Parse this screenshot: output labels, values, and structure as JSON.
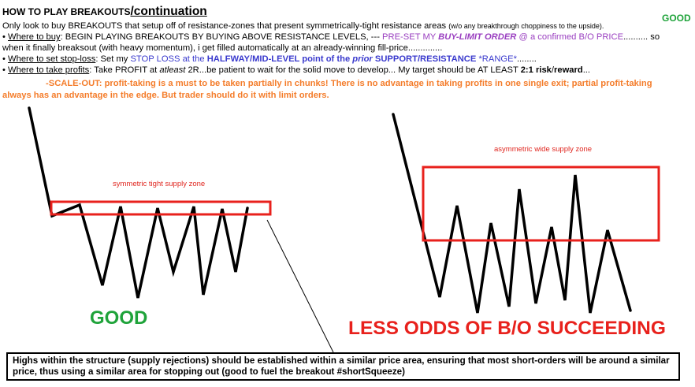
{
  "header": {
    "title_main": "HOW TO PLAY BREAKOUTS",
    "title_cont": "/continuation",
    "good_label": "GOOD"
  },
  "lines": {
    "l2_main": "Only look to buy BREAKOUTS that setup off of resistance-zones that present symmetrically-tight resistance areas ",
    "l2_small": "(w/o any breakthrough choppiness to the upside).",
    "l3_bullet": "• ",
    "l3_label": "Where to buy",
    "l3_a": ": BEGIN PLAYING BREAKOUTS BY BUYING ABOVE RESISTANCE LEVELS, --- ",
    "l3_b": "PRE-SET MY ",
    "l3_c": "BUY-LIMIT ORDER",
    "l3_d": " @ a confirmed B/O PRICE",
    "l3_e": ".......... so",
    "l4": "when it finally breaksout (with heavy momentum), i get filled automatically at an already-winning fill-price..............",
    "l5_bullet": "• ",
    "l5_label": "Where to set stop-loss",
    "l5_a": ": Set my ",
    "l5_b": "STOP LOSS at the ",
    "l5_c": "HALFWAY/MID-LEVEL point of the ",
    "l5_d": "prior",
    "l5_e": " SUPPORT/RESISTANCE ",
    "l5_f": "*RANGE*",
    "l5_g": "........",
    "l6_bullet": "• ",
    "l6_label": "Where to take profits",
    "l6_a": ": Take PROFIT at ",
    "l6_b": "atleast",
    "l6_c": " 2R...be patient to wait for the solid move to develop... My target should be AT LEAST ",
    "l6_d": "2:1",
    "l6_e": " risk",
    "l6_f": "/",
    "l6_g": "reward",
    "l6_h": "...",
    "l7": "-SCALE-OUT: profit-taking is a must to be taken partially in chunks! There is no advantage in taking profits in one single exit; partial profit-taking",
    "l8": "always has an advantage in the edge. But trader should do it with limit orders."
  },
  "diagram": {
    "left_zone_label": "symmetric tight supply zone",
    "left_caption": "GOOD",
    "right_zone_label": "asymmetric wide supply zone",
    "right_caption": "LESS ODDS OF B/O SUCCEEDING"
  },
  "note": {
    "text": "Highs within the structure (supply rejections) should be established within a similar price area, ensuring that most short-orders will be around a similar price, thus using a similar area for stopping out (good to fuel the breakout #shortSqueeze)"
  },
  "colors": {
    "zone_box": "#e8211c",
    "good_green": "#1fa33a",
    "orange": "#f47c2a",
    "blue": "#3a3acd",
    "purple": "#9a3fc0"
  }
}
